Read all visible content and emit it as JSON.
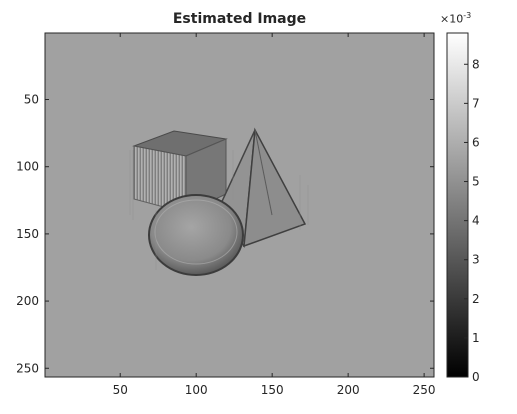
{
  "chart_data": {
    "type": "heatmap",
    "title": "Estimated Image",
    "xlabel": "",
    "ylabel": "",
    "xlim": [
      0.5,
      256.5
    ],
    "ylim": [
      256.5,
      0.5
    ],
    "x_ticks": [
      50,
      100,
      150,
      200,
      250
    ],
    "y_ticks": [
      50,
      100,
      150,
      200,
      250
    ],
    "colormap": "gray",
    "background_value": 0.0045,
    "colorbar": {
      "ticks": [
        0,
        1,
        2,
        3,
        4,
        5,
        6,
        7,
        8
      ],
      "range": [
        0,
        8.8
      ],
      "multiplier_base": "×10",
      "multiplier_exponent": "-3"
    },
    "shapes": [
      {
        "name": "cube",
        "approx_pixel_region": {
          "x": [
            58,
            125
          ],
          "y": [
            73,
            130
          ]
        }
      },
      {
        "name": "pyramid",
        "approx_pixel_region": {
          "x": [
            115,
            175
          ],
          "y": [
            72,
            147
          ]
        }
      },
      {
        "name": "sphere",
        "approx_pixel_region": {
          "x": [
            68,
            132
          ],
          "y": [
            118,
            183
          ]
        }
      }
    ]
  }
}
